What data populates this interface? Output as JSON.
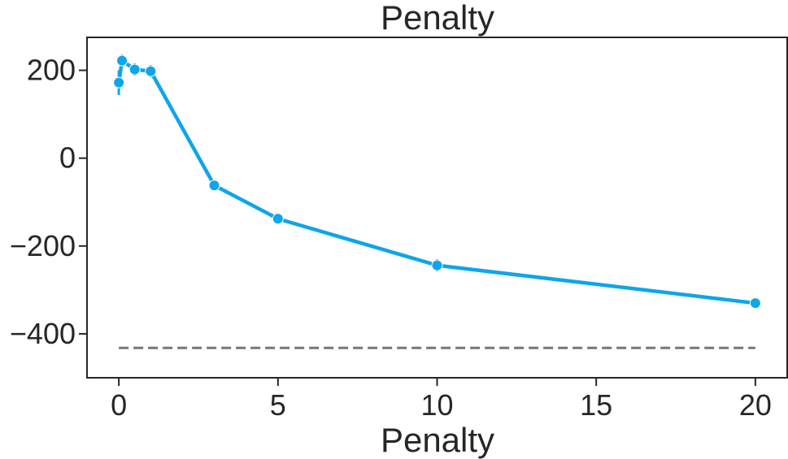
{
  "chart_data": {
    "type": "line",
    "title": "Penalty",
    "xlabel": "Penalty",
    "ylabel": "",
    "xlim": [
      -1,
      21
    ],
    "ylim": [
      -500,
      275
    ],
    "xticks": [
      0,
      5,
      10,
      15,
      20
    ],
    "yticks": [
      200,
      0,
      -200,
      -400
    ],
    "xtick_labels": [
      "0",
      "5",
      "10",
      "15",
      "20"
    ],
    "ytick_labels": [
      "200",
      "0",
      "−200",
      "−400"
    ],
    "grid": false,
    "series": [
      {
        "color": "#0ea5e9",
        "points": [
          {
            "x": 0.0,
            "y": 172,
            "err": 28
          },
          {
            "x": 0.1,
            "y": 222,
            "err": 14
          },
          {
            "x": 0.5,
            "y": 202,
            "err": 14
          },
          {
            "x": 1.0,
            "y": 198,
            "err": 14
          },
          {
            "x": 3.0,
            "y": -62,
            "err": 5
          },
          {
            "x": 5.0,
            "y": -138,
            "err": 5
          },
          {
            "x": 10.0,
            "y": -244,
            "err": 14
          },
          {
            "x": 20.0,
            "y": -330,
            "err": 4
          }
        ]
      }
    ],
    "reference_line": {
      "y": -432,
      "style": "dashed",
      "color": "#777777"
    }
  }
}
